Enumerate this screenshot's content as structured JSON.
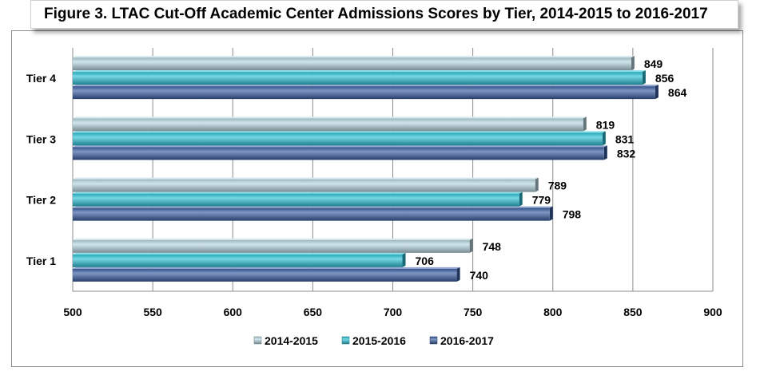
{
  "title": "Figure 3. LTAC Cut-Off Academic Center Admissions Scores by Tier, 2014-2015 to 2016-2017",
  "chart_data": {
    "type": "bar",
    "orientation": "horizontal",
    "categories": [
      "Tier 1",
      "Tier 2",
      "Tier 3",
      "Tier 4"
    ],
    "series": [
      {
        "name": "2014-2015",
        "color": "#b7d7e0",
        "values": [
          748,
          789,
          819,
          849
        ]
      },
      {
        "name": "2015-2016",
        "color": "#2bc3d6",
        "values": [
          706,
          779,
          831,
          856
        ]
      },
      {
        "name": "2016-2017",
        "color": "#3b5fa4",
        "values": [
          740,
          798,
          832,
          864
        ]
      }
    ],
    "xlim": [
      500,
      900
    ],
    "xticks": [
      "500",
      "550",
      "600",
      "650",
      "700",
      "750",
      "800",
      "850",
      "900"
    ],
    "grid": "vertical gridlines",
    "legend": "bottom"
  }
}
